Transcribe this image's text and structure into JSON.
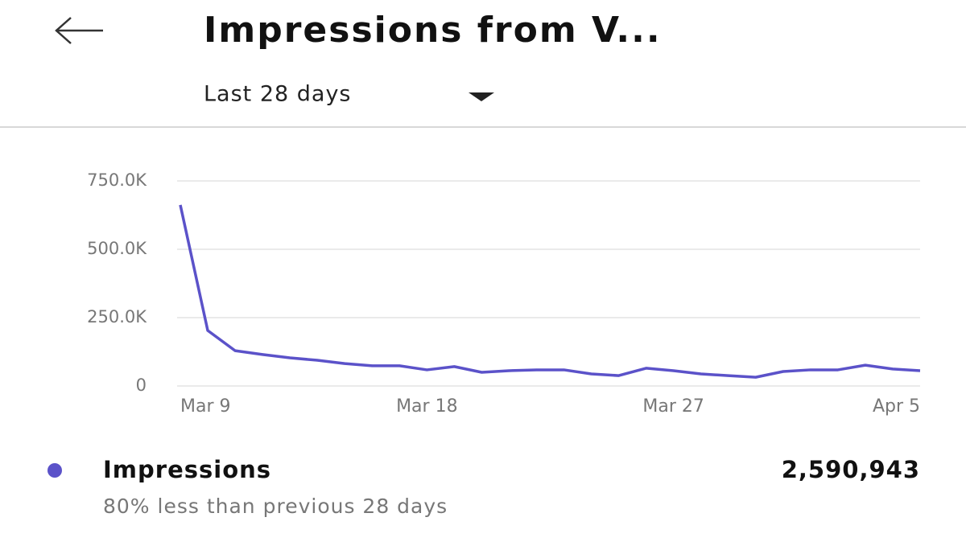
{
  "header": {
    "title": "Impressions from V..."
  },
  "filter": {
    "label": "Last 28 days"
  },
  "chart_data": {
    "type": "line",
    "categories": [
      "Mar 9",
      null,
      null,
      null,
      null,
      null,
      null,
      null,
      null,
      "Mar 18",
      null,
      null,
      null,
      null,
      null,
      null,
      null,
      null,
      "Mar 27",
      null,
      null,
      null,
      null,
      null,
      null,
      null,
      null,
      "Apr 5"
    ],
    "series": [
      {
        "name": "Impressions",
        "color": "#5b52c9",
        "values": [
          662000,
          203000,
          129000,
          115000,
          103000,
          94000,
          82000,
          74000,
          74000,
          59000,
          71000,
          50000,
          56000,
          59000,
          59000,
          44000,
          38000,
          65000,
          56000,
          44000,
          38000,
          32000,
          53000,
          59000,
          59000,
          76000,
          62000,
          56000
        ]
      }
    ],
    "ylim": [
      0,
      750000
    ],
    "yticks": [
      0,
      {
        "value": 250000,
        "label": "250.0K"
      },
      {
        "value": 500000,
        "label": "500.0K"
      },
      {
        "value": 750000,
        "label": "750.0K"
      }
    ],
    "grid": true
  },
  "summary": {
    "total": "2,590,943",
    "comparison": "80% less than previous 28 days"
  }
}
